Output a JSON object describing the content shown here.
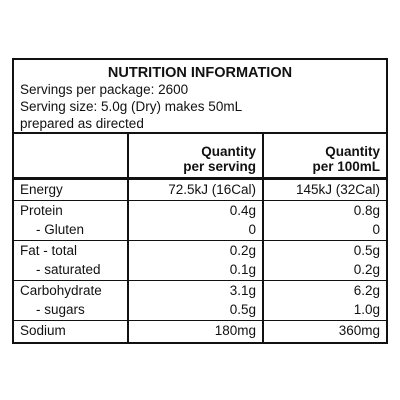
{
  "title": "NUTRITION INFORMATION",
  "info": [
    "Servings per package: 2600",
    "Serving size: 5.0g (Dry) makes 50mL",
    "prepared as directed"
  ],
  "table": {
    "header": [
      [
        "Quantity",
        "per serving"
      ],
      [
        "Quantity",
        "per 100mL"
      ]
    ],
    "groups": [
      [
        [
          "Energy",
          "72.5kJ (16Cal)",
          "145kJ (32Cal)"
        ]
      ],
      [
        [
          "Protein",
          "0.4g",
          "0.8g"
        ],
        [
          "- Gluten",
          "0",
          "0"
        ]
      ],
      [
        [
          "Fat - total",
          "0.2g",
          "0.5g"
        ],
        [
          "- saturated",
          "0.1g",
          "0.2g"
        ]
      ],
      [
        [
          "Carbohydrate",
          "3.1g",
          "6.2g"
        ],
        [
          "- sugars",
          "0.5g",
          "1.0g"
        ]
      ],
      [
        [
          "Sodium",
          "180mg",
          "360mg"
        ]
      ]
    ]
  }
}
